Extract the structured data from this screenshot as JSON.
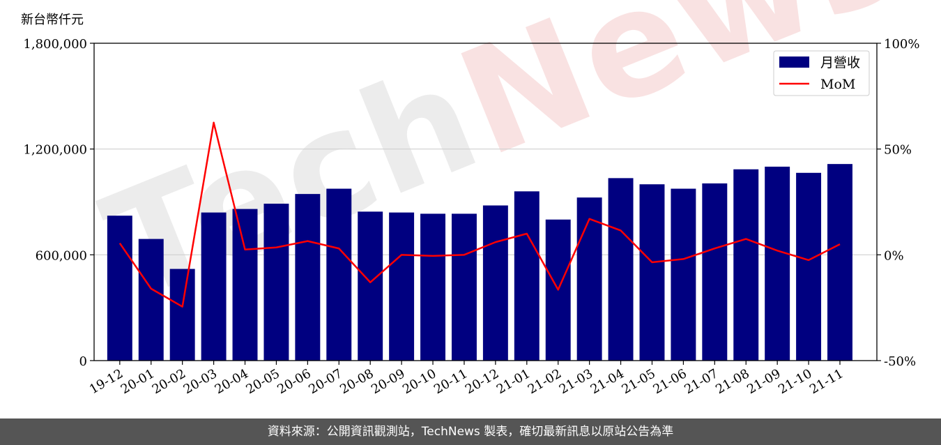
{
  "chart_data": {
    "type": "bar",
    "y_unit_label": "新台幣仟元",
    "categories": [
      "19-12",
      "20-01",
      "20-02",
      "20-03",
      "20-04",
      "20-05",
      "20-06",
      "20-07",
      "20-08",
      "20-09",
      "20-10",
      "20-11",
      "20-12",
      "21-01",
      "21-02",
      "21-03",
      "21-04",
      "21-05",
      "21-06",
      "21-07",
      "21-08",
      "21-09",
      "21-10",
      "21-11"
    ],
    "series": [
      {
        "name": "月營收",
        "kind": "bar",
        "axis": "left",
        "color": "#000080",
        "values": [
          822000,
          690000,
          520000,
          840000,
          860000,
          890000,
          945000,
          975000,
          845000,
          840000,
          833000,
          833000,
          880000,
          960000,
          800000,
          925000,
          1035000,
          1000000,
          975000,
          1005000,
          1085000,
          1100000,
          1065000,
          1115000
        ]
      },
      {
        "name": "MoM",
        "kind": "line",
        "axis": "right",
        "color": "#ff0000",
        "values": [
          5.5,
          -16.0,
          -24.5,
          62.5,
          2.5,
          3.5,
          6.5,
          3.0,
          -13.0,
          0.0,
          -0.5,
          0.0,
          6.0,
          10.0,
          -16.5,
          17.0,
          11.5,
          -3.5,
          -2.0,
          3.0,
          7.5,
          2.0,
          -2.5,
          5.0
        ]
      }
    ],
    "y_left": {
      "lim": [
        0,
        1800000
      ],
      "ticks": [
        "0",
        "600,000",
        "1,200,000",
        "1,800,000"
      ]
    },
    "y_right": {
      "lim": [
        -50,
        100
      ],
      "ticks": [
        "-50%",
        "0%",
        "50%",
        "100%"
      ]
    },
    "grid": "horizontal",
    "legend_position": "top-right"
  },
  "watermark": {
    "prefix": "Tech",
    "suffix": "News"
  },
  "footer_text": "資料來源：公開資訊觀測站，TechNews 製表，確切最新訊息以原站公告為準"
}
